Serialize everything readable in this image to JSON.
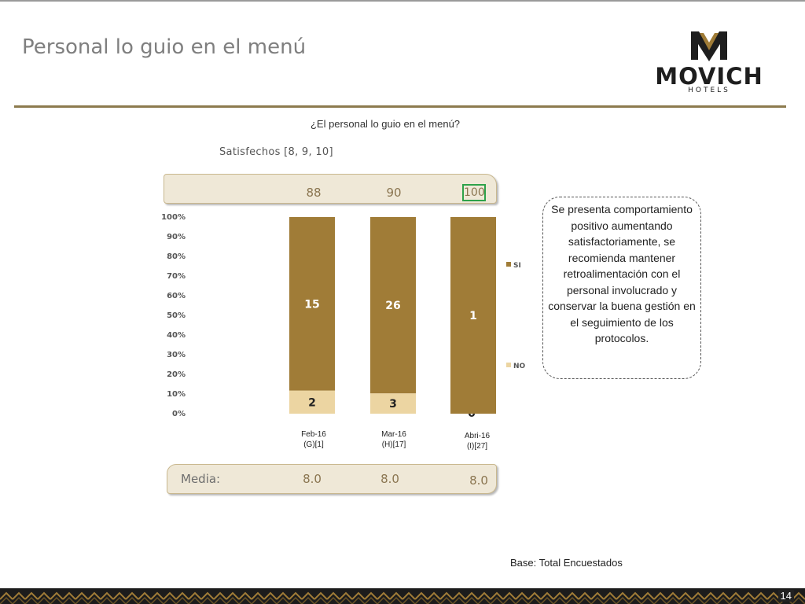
{
  "slide": {
    "title": "Personal lo guio en el menú",
    "page_number": "14"
  },
  "logo": {
    "brand": "MOVICH",
    "sub": "HOTELS"
  },
  "chart_header": {
    "question": "¿El personal lo guio en el menú?",
    "satisfied_label": "Satisfechos [8, 9, 10]"
  },
  "satisfied_values": [
    "88",
    "90",
    "100"
  ],
  "media": {
    "label": "Media:",
    "values": [
      "8.0",
      "8.0",
      "8.0"
    ]
  },
  "note": "Se presenta comportamiento positivo aumentando satisfactoriamente, se recomienda mantener retroalimentación con el personal involucrado y conservar la buena gestión en el seguimiento de los protocolos.",
  "base": "Base: Total Encuestados",
  "colors": {
    "si": "#a07c37",
    "no": "#ecd5a2",
    "accent_border": "#2ea24a"
  },
  "chart_data": {
    "type": "bar",
    "stacked": true,
    "percent": true,
    "categories": [
      [
        "Feb-16",
        "(G)[1]"
      ],
      [
        "Mar-16",
        "(H)[17]"
      ],
      [
        "Abri-16",
        "(I)[27]"
      ]
    ],
    "series": [
      {
        "name": "NO",
        "values": [
          2,
          3,
          0
        ],
        "color": "#ecd5a2"
      },
      {
        "name": "SI",
        "values": [
          15,
          26,
          1
        ],
        "color": "#a07c37"
      }
    ],
    "yticks": [
      "0%",
      "10%",
      "20%",
      "30%",
      "40%",
      "50%",
      "60%",
      "70%",
      "80%",
      "90%",
      "100%"
    ],
    "ylim": [
      0,
      100
    ],
    "legend_position": "right",
    "grid": false
  }
}
